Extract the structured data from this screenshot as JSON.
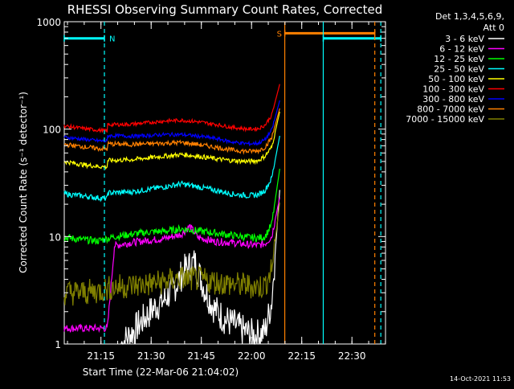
{
  "chart_data": {
    "type": "line",
    "title": "RHESSI Observing Summary Count Rates, Corrected",
    "xlabel": "Start Time (22-Mar-06 21:04:02)",
    "ylabel": "Corrected Count Rate (s⁻¹ detector⁻¹)",
    "yscale": "log",
    "ylim": [
      1,
      1000
    ],
    "xlim_minutes_after_start": [
      0,
      96
    ],
    "x_ticks": [
      {
        "label": "21:15",
        "t": 10.97
      },
      {
        "label": "21:30",
        "t": 25.97
      },
      {
        "label": "21:45",
        "t": 40.97
      },
      {
        "label": "22:00",
        "t": 55.97
      },
      {
        "label": "22:15",
        "t": 70.97
      },
      {
        "label": "22:30",
        "t": 85.97
      }
    ],
    "y_ticks": [
      {
        "label": "1",
        "v": 1
      },
      {
        "label": "10",
        "v": 10
      },
      {
        "label": "100",
        "v": 100
      },
      {
        "label": "1000",
        "v": 1000
      }
    ],
    "legend": {
      "position": "right",
      "header": [
        "Det 1,3,4,5,6,9,",
        "Att 0"
      ]
    },
    "series": [
      {
        "name": "3 - 6 keV",
        "color": "#ffffff",
        "x": [
          17,
          20,
          23,
          27,
          30,
          33,
          36,
          39,
          42,
          45,
          48,
          51,
          54,
          57,
          60,
          62,
          64.5
        ],
        "y": [
          1.0,
          1.25,
          1.6,
          2.2,
          2.6,
          3.4,
          4.9,
          5.8,
          3.2,
          2.1,
          1.7,
          1.5,
          1.3,
          1.2,
          1.3,
          2.5,
          30
        ]
      },
      {
        "name": "6 - 12 keV",
        "color": "#ff00ff",
        "x": [
          0,
          12.9,
          15,
          20,
          25,
          30,
          35,
          37.5,
          40,
          45,
          50,
          55,
          58,
          60,
          62,
          64.5
        ],
        "y": [
          1.4,
          1.4,
          8.2,
          8.8,
          9.2,
          9.6,
          10.5,
          12.5,
          9.8,
          9.0,
          8.8,
          8.4,
          8.3,
          8.6,
          10,
          24
        ]
      },
      {
        "name": "12 - 25 keV",
        "color": "#00ff00",
        "x": [
          0,
          5,
          10,
          15,
          20,
          25,
          30,
          35,
          40,
          45,
          50,
          55,
          58,
          60,
          62,
          64.5
        ],
        "y": [
          9.8,
          9.4,
          9.1,
          10.0,
          10.5,
          11.0,
          11.2,
          11.8,
          11.3,
          10.8,
          10.3,
          9.8,
          9.7,
          10.0,
          13,
          45
        ]
      },
      {
        "name": "25 - 50 keV",
        "color": "#00ffff",
        "x": [
          0,
          5,
          10,
          12.9,
          13,
          20,
          25,
          30,
          35,
          40,
          45,
          50,
          55,
          58,
          60,
          62,
          64.5
        ],
        "y": [
          25,
          24,
          23,
          22.5,
          25.5,
          26,
          27.5,
          29,
          31,
          29,
          27,
          25,
          24,
          24.5,
          27,
          35,
          90
        ]
      },
      {
        "name": "50 - 100 keV",
        "color": "#ffff00",
        "x": [
          0,
          5,
          10,
          12.9,
          13,
          20,
          25,
          30,
          35,
          40,
          45,
          50,
          55,
          58,
          60,
          62,
          64.5
        ],
        "y": [
          50,
          47,
          45,
          44.5,
          51,
          52,
          54,
          56,
          58,
          56,
          53,
          51,
          50,
          51,
          56,
          68,
          150
        ]
      },
      {
        "name": "100 - 300 keV",
        "color": "#ff0000",
        "x": [
          0,
          5,
          10,
          12.9,
          13,
          20,
          25,
          30,
          35,
          40,
          45,
          50,
          55,
          58,
          60,
          62,
          64.5
        ],
        "y": [
          107,
          102,
          98,
          96,
          110,
          111,
          115,
          119,
          121,
          117,
          111,
          104,
          100,
          101,
          109,
          135,
          270
        ]
      },
      {
        "name": "300 - 800 keV",
        "color": "#0000ff",
        "x": [
          0,
          5,
          10,
          12.9,
          13,
          20,
          25,
          30,
          35,
          40,
          45,
          50,
          55,
          58,
          60,
          62,
          64.5
        ],
        "y": [
          84,
          81,
          78,
          77,
          87,
          86,
          87,
          89,
          89,
          86,
          82,
          76,
          73,
          74,
          80,
          98,
          190
        ]
      },
      {
        "name": "800 - 7000 keV",
        "color": "#ff8000",
        "x": [
          0,
          5,
          10,
          12.9,
          13,
          20,
          25,
          30,
          35,
          40,
          45,
          50,
          55,
          58,
          60,
          62,
          64.5
        ],
        "y": [
          72,
          69,
          66,
          65,
          73,
          72,
          73,
          74,
          75,
          72,
          68,
          64,
          62,
          63,
          68,
          83,
          160
        ]
      },
      {
        "name": "7000 - 15000 keV",
        "color": "#808000",
        "x": [
          0,
          5,
          10,
          15,
          20,
          25,
          30,
          35,
          40,
          45,
          50,
          55,
          58,
          60,
          62,
          64.5
        ],
        "y": [
          3.0,
          3.0,
          3.1,
          3.4,
          3.5,
          3.6,
          3.8,
          4.1,
          4.0,
          3.8,
          3.6,
          3.5,
          3.4,
          3.5,
          5.0,
          22
        ]
      }
    ],
    "annotations": [
      {
        "kind": "time-bar",
        "label": "N",
        "color": "#00ffff",
        "t": [
          0,
          12.0
        ],
        "v": 700
      },
      {
        "kind": "time-bar",
        "label": "S",
        "color": "#ff8000",
        "t": [
          65.9,
          92.8
        ],
        "v": 780
      },
      {
        "kind": "time-bar",
        "label": "",
        "color": "#00ffff",
        "t": [
          77.4,
          94.6
        ],
        "v": 700
      },
      {
        "kind": "vline",
        "color": "#00ffff",
        "style": "dashed",
        "t": 12.0
      },
      {
        "kind": "vline",
        "color": "#ff8000",
        "style": "solid",
        "t": 65.9
      },
      {
        "kind": "vline",
        "color": "#00ffff",
        "style": "solid",
        "t": 77.4
      },
      {
        "kind": "vline",
        "color": "#ff8000",
        "style": "dashed",
        "t": 92.8
      },
      {
        "kind": "vline",
        "color": "#00ffff",
        "style": "dashed",
        "t": 94.6
      }
    ],
    "grid": false
  },
  "footer": {
    "timestamp": "14-Oct-2021 11:53"
  }
}
